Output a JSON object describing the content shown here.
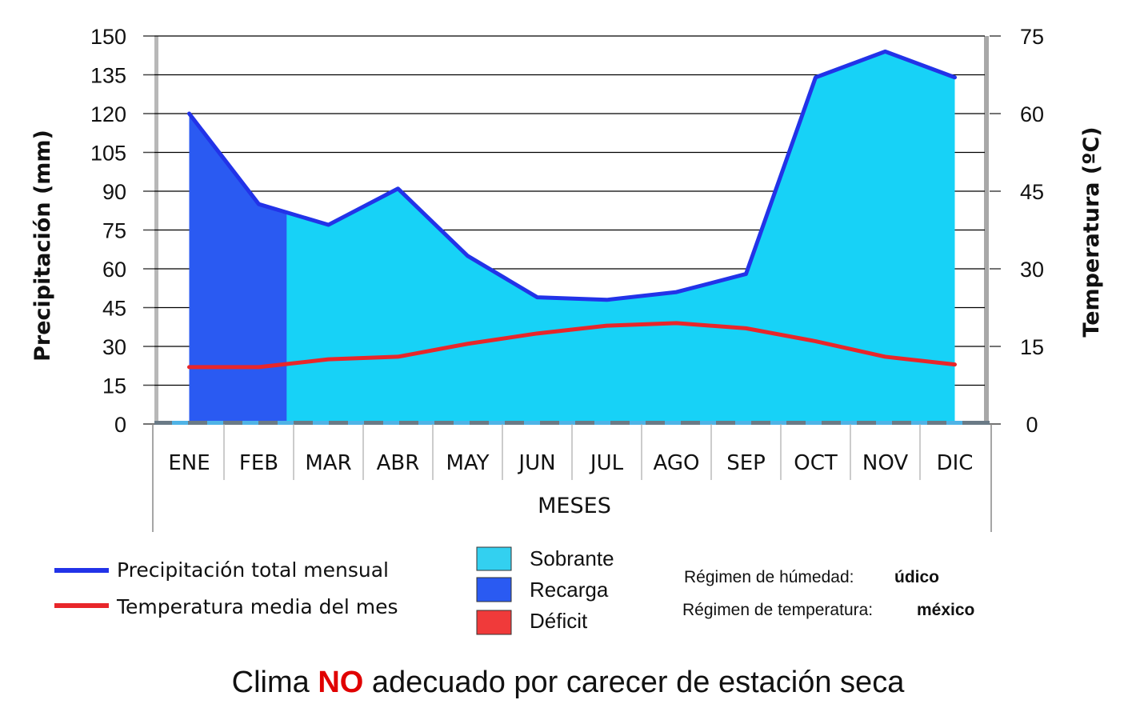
{
  "chart_data": {
    "type": "area",
    "categories": [
      "ENE",
      "FEB",
      "MAR",
      "ABR",
      "MAY",
      "JUN",
      "JUL",
      "AGO",
      "SEP",
      "OCT",
      "NOV",
      "DIC"
    ],
    "xlabel": "MESES",
    "ylabel": "Precipitación (mm)",
    "y2label": "Temperatura (ºC)",
    "ylim": [
      0,
      150
    ],
    "y2lim": [
      0,
      75
    ],
    "yticks": [
      "0",
      "15",
      "30",
      "45",
      "60",
      "75",
      "90",
      "105",
      "120",
      "135",
      "150"
    ],
    "y2ticks": [
      "0",
      "15",
      "30",
      "45",
      "60",
      "75"
    ],
    "grid": true,
    "series": [
      {
        "name": "Precipitación total mensual",
        "axis": "left",
        "color": "#2233e8",
        "values": [
          120,
          85,
          77,
          91,
          65,
          49,
          48,
          51,
          58,
          134,
          144,
          134
        ]
      },
      {
        "name": "Temperatura media del mes",
        "axis": "right",
        "color": "#e8262a",
        "values": [
          11,
          11,
          12.5,
          13,
          15.5,
          17.5,
          19,
          19.5,
          18.5,
          16,
          13,
          11.5
        ]
      }
    ],
    "areas": [
      {
        "name": "Sobrante",
        "color": "#17d2f7"
      },
      {
        "name": "Recarga",
        "color": "#2a5af2"
      },
      {
        "name": "Déficit",
        "color": "#f03a3a"
      }
    ]
  },
  "legend": {
    "lines": [
      {
        "label": "Precipitación total mensual",
        "color": "#2233e8"
      },
      {
        "label": "Temperatura media del mes",
        "color": "#e8262a"
      }
    ],
    "boxes": [
      {
        "label": "Sobrante",
        "color": "#33d0f0"
      },
      {
        "label": "Recarga",
        "color": "#2a5af2"
      },
      {
        "label": "Déficit",
        "color": "#f03a3a"
      }
    ]
  },
  "regimes": {
    "humidity_label": "Régimen de húmedad:",
    "humidity_value": "údico",
    "temperature_label": "Régimen de temperatura:",
    "temperature_value": "méxico"
  },
  "caption": {
    "before": "Clima ",
    "highlight": "NO",
    "after": " adecuado por carecer de estación seca"
  }
}
